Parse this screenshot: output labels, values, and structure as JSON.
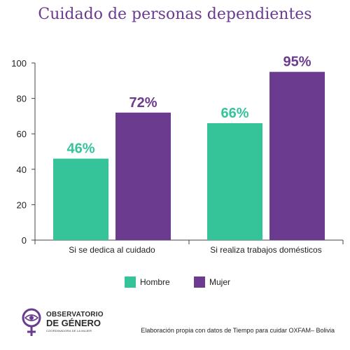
{
  "title": "Cuidado de personas dependientes",
  "colors": {
    "hombre": "#35c39a",
    "mujer": "#6a3b8f",
    "title": "#6a3b8f"
  },
  "chart_data": {
    "type": "bar",
    "title": "Cuidado de personas dependientes",
    "categories": [
      "Si se dedica al cuidado",
      "Si realiza trabajos domésticos"
    ],
    "series": [
      {
        "name": "Hombre",
        "values": [
          46,
          66
        ],
        "labels": [
          "46%",
          "66%"
        ],
        "color": "#35c39a"
      },
      {
        "name": "Mujer",
        "values": [
          72,
          95
        ],
        "labels": [
          "72%",
          "95%"
        ],
        "color": "#6a3b8f"
      }
    ],
    "yticks": [
      0,
      20,
      40,
      60,
      80,
      100
    ],
    "ylim": [
      0,
      100
    ],
    "xlabel": "",
    "ylabel": "",
    "grid": false,
    "legend": "bottom"
  },
  "legend": {
    "hombre": "Hombre",
    "mujer": "Mujer"
  },
  "logo": {
    "line1": "OBSERVATORIO",
    "line2": "DE GÉNERO",
    "line3": "COORDINADORA DE LA MUJER",
    "icon": "female-symbol-eye-icon"
  },
  "source": "Elaboración propia con datos de Tiempo para cuidar OXFAM– Bolivia"
}
